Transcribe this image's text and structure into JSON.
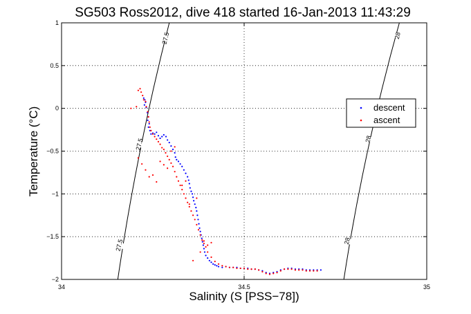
{
  "chart_data": {
    "type": "scatter",
    "title": "SG503 Ross2012, dive 418 started 16-Jan-2013 11:43:29",
    "xlabel": "Salinity (S [PSS−78])",
    "ylabel": "Temperature (°C)",
    "xlim": [
      34,
      35
    ],
    "ylim": [
      -2,
      1
    ],
    "xticks": [
      34,
      34.5,
      35
    ],
    "xtick_labels": [
      "34",
      "34.5",
      "35"
    ],
    "yticks": [
      -2,
      -1.5,
      -1,
      -0.5,
      0,
      0.5,
      1
    ],
    "ytick_labels": [
      "−2",
      "−1.5",
      "−1",
      "−0.5",
      "0",
      "0.5",
      "1"
    ],
    "grid": true,
    "legend_position": "top-right",
    "colors": {
      "descent": "#0000ff",
      "ascent": "#ff0000",
      "contour": "#000000"
    },
    "contours": [
      {
        "label": "27.5",
        "points": [
          [
            34.154,
            -2.0
          ],
          [
            34.215,
            -0.5
          ],
          [
            34.295,
            1.0
          ]
        ]
      },
      {
        "label": "28",
        "points": [
          [
            34.773,
            -2.0
          ],
          [
            34.838,
            -0.5
          ],
          [
            34.925,
            1.0
          ]
        ]
      }
    ],
    "contour_labels": [
      {
        "text": "27.5",
        "x": 34.158,
        "y": -1.6
      },
      {
        "text": "27.5",
        "x": 34.213,
        "y": -0.42
      },
      {
        "text": "27.5",
        "x": 34.285,
        "y": 0.82
      },
      {
        "text": "28",
        "x": 34.782,
        "y": -1.55
      },
      {
        "text": "28",
        "x": 34.84,
        "y": -0.36
      },
      {
        "text": "28",
        "x": 34.92,
        "y": 0.85
      }
    ],
    "series": [
      {
        "name": "descent",
        "points": [
          [
            34.225,
            0.12
          ],
          [
            34.228,
            0.1
          ],
          [
            34.23,
            0.07
          ],
          [
            34.227,
            0.04
          ],
          [
            34.232,
            0.01
          ],
          [
            34.235,
            -0.05
          ],
          [
            34.238,
            -0.1
          ],
          [
            34.236,
            -0.14
          ],
          [
            34.24,
            -0.18
          ],
          [
            34.238,
            -0.22
          ],
          [
            34.242,
            -0.26
          ],
          [
            34.245,
            -0.3
          ],
          [
            34.25,
            -0.29
          ],
          [
            34.255,
            -0.3
          ],
          [
            34.26,
            -0.28
          ],
          [
            34.265,
            -0.32
          ],
          [
            34.27,
            -0.35
          ],
          [
            34.275,
            -0.33
          ],
          [
            34.28,
            -0.31
          ],
          [
            34.286,
            -0.33
          ],
          [
            34.29,
            -0.37
          ],
          [
            34.295,
            -0.4
          ],
          [
            34.3,
            -0.44
          ],
          [
            34.305,
            -0.48
          ],
          [
            34.31,
            -0.52
          ],
          [
            34.312,
            -0.57
          ],
          [
            34.315,
            -0.6
          ],
          [
            34.32,
            -0.62
          ],
          [
            34.325,
            -0.65
          ],
          [
            34.33,
            -0.68
          ],
          [
            34.335,
            -0.72
          ],
          [
            34.34,
            -0.76
          ],
          [
            34.345,
            -0.8
          ],
          [
            34.348,
            -0.84
          ],
          [
            34.35,
            -0.88
          ],
          [
            34.352,
            -0.93
          ],
          [
            34.355,
            -0.97
          ],
          [
            34.358,
            -1.0
          ],
          [
            34.36,
            -1.04
          ],
          [
            34.362,
            -1.08
          ],
          [
            34.365,
            -1.12
          ],
          [
            34.368,
            -1.16
          ],
          [
            34.37,
            -1.2
          ],
          [
            34.372,
            -1.25
          ],
          [
            34.374,
            -1.3
          ],
          [
            34.376,
            -1.35
          ],
          [
            34.378,
            -1.4
          ],
          [
            34.38,
            -1.44
          ],
          [
            34.382,
            -1.48
          ],
          [
            34.384,
            -1.52
          ],
          [
            34.386,
            -1.56
          ],
          [
            34.388,
            -1.6
          ],
          [
            34.39,
            -1.64
          ],
          [
            34.392,
            -1.68
          ],
          [
            34.395,
            -1.72
          ],
          [
            34.4,
            -1.75
          ],
          [
            34.405,
            -1.78
          ],
          [
            34.41,
            -1.8
          ],
          [
            34.415,
            -1.82
          ],
          [
            34.42,
            -1.83
          ],
          [
            34.425,
            -1.84
          ],
          [
            34.43,
            -1.85
          ],
          [
            34.44,
            -1.86
          ],
          [
            34.45,
            -1.85
          ],
          [
            34.46,
            -1.86
          ],
          [
            34.47,
            -1.86
          ],
          [
            34.48,
            -1.86
          ],
          [
            34.49,
            -1.87
          ],
          [
            34.5,
            -1.87
          ],
          [
            34.51,
            -1.87
          ],
          [
            34.52,
            -1.88
          ],
          [
            34.53,
            -1.88
          ],
          [
            34.54,
            -1.89
          ],
          [
            34.55,
            -1.9
          ],
          [
            34.56,
            -1.92
          ],
          [
            34.57,
            -1.93
          ],
          [
            34.58,
            -1.92
          ],
          [
            34.59,
            -1.91
          ],
          [
            34.6,
            -1.89
          ],
          [
            34.61,
            -1.88
          ],
          [
            34.62,
            -1.87
          ],
          [
            34.63,
            -1.87
          ],
          [
            34.64,
            -1.88
          ],
          [
            34.65,
            -1.88
          ],
          [
            34.66,
            -1.88
          ],
          [
            34.67,
            -1.89
          ],
          [
            34.68,
            -1.89
          ],
          [
            34.69,
            -1.89
          ],
          [
            34.7,
            -1.89
          ],
          [
            34.71,
            -1.89
          ]
        ]
      },
      {
        "name": "ascent",
        "points": [
          [
            34.19,
            0.0
          ],
          [
            34.205,
            0.02
          ],
          [
            34.21,
            0.21
          ],
          [
            34.215,
            0.23
          ],
          [
            34.218,
            0.19
          ],
          [
            34.222,
            0.15
          ],
          [
            34.225,
            0.1
          ],
          [
            34.23,
            0.08
          ],
          [
            34.232,
            0.02
          ],
          [
            34.236,
            -0.04
          ],
          [
            34.238,
            -0.1
          ],
          [
            34.24,
            -0.16
          ],
          [
            34.242,
            -0.22
          ],
          [
            34.245,
            -0.26
          ],
          [
            34.25,
            -0.3
          ],
          [
            34.255,
            -0.33
          ],
          [
            34.26,
            -0.36
          ],
          [
            34.265,
            -0.39
          ],
          [
            34.27,
            -0.42
          ],
          [
            34.275,
            -0.46
          ],
          [
            34.28,
            -0.48
          ],
          [
            34.285,
            -0.52
          ],
          [
            34.29,
            -0.56
          ],
          [
            34.295,
            -0.6
          ],
          [
            34.3,
            -0.64
          ],
          [
            34.305,
            -0.68
          ],
          [
            34.31,
            -0.74
          ],
          [
            34.315,
            -0.8
          ],
          [
            34.32,
            -0.85
          ],
          [
            34.325,
            -0.9
          ],
          [
            34.33,
            -0.95
          ],
          [
            34.335,
            -1.0
          ],
          [
            34.34,
            -1.05
          ],
          [
            34.345,
            -1.1
          ],
          [
            34.35,
            -1.15
          ],
          [
            34.355,
            -1.2
          ],
          [
            34.36,
            -1.25
          ],
          [
            34.365,
            -1.3
          ],
          [
            34.37,
            -1.36
          ],
          [
            34.375,
            -1.42
          ],
          [
            34.38,
            -1.48
          ],
          [
            34.385,
            -1.54
          ],
          [
            34.39,
            -1.58
          ],
          [
            34.395,
            -1.62
          ],
          [
            34.4,
            -1.68
          ],
          [
            34.41,
            -1.74
          ],
          [
            34.42,
            -1.79
          ],
          [
            34.43,
            -1.82
          ],
          [
            34.44,
            -1.84
          ],
          [
            34.45,
            -1.85
          ],
          [
            34.46,
            -1.86
          ],
          [
            34.47,
            -1.86
          ],
          [
            34.48,
            -1.87
          ],
          [
            34.49,
            -1.87
          ],
          [
            34.5,
            -1.87
          ],
          [
            34.51,
            -1.88
          ],
          [
            34.52,
            -1.88
          ],
          [
            34.53,
            -1.88
          ],
          [
            34.54,
            -1.89
          ],
          [
            34.55,
            -1.91
          ],
          [
            34.56,
            -1.93
          ],
          [
            34.57,
            -1.94
          ],
          [
            34.58,
            -1.93
          ],
          [
            34.59,
            -1.92
          ],
          [
            34.6,
            -1.9
          ],
          [
            34.61,
            -1.88
          ],
          [
            34.62,
            -1.88
          ],
          [
            34.63,
            -1.88
          ],
          [
            34.64,
            -1.89
          ],
          [
            34.65,
            -1.89
          ],
          [
            34.66,
            -1.89
          ],
          [
            34.67,
            -1.9
          ],
          [
            34.68,
            -1.9
          ],
          [
            34.69,
            -1.9
          ],
          [
            34.7,
            -1.9
          ],
          [
            34.21,
            -0.58
          ],
          [
            34.22,
            -0.65
          ],
          [
            34.23,
            -0.72
          ],
          [
            34.24,
            -0.8
          ],
          [
            34.25,
            -0.78
          ],
          [
            34.26,
            -0.86
          ],
          [
            34.27,
            -0.62
          ],
          [
            34.28,
            -0.66
          ],
          [
            34.29,
            -0.7
          ],
          [
            34.3,
            -0.5
          ],
          [
            34.31,
            -0.45
          ],
          [
            34.33,
            -0.9
          ],
          [
            34.34,
            -0.85
          ],
          [
            34.35,
            -1.12
          ],
          [
            34.37,
            -1.05
          ],
          [
            34.39,
            -1.55
          ],
          [
            34.4,
            -1.6
          ],
          [
            34.41,
            -1.57
          ],
          [
            34.38,
            -1.68
          ],
          [
            34.36,
            -1.78
          ]
        ]
      }
    ]
  }
}
